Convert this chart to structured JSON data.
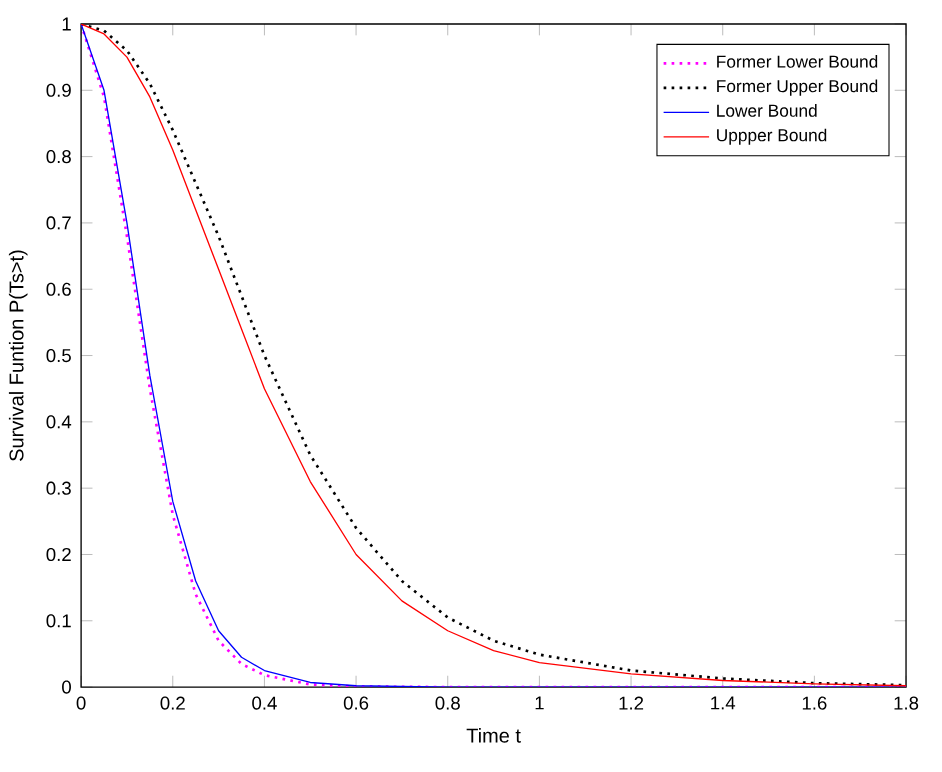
{
  "chart_data": {
    "type": "line",
    "xlabel": "Time t",
    "ylabel": "Survival Funtion P(Ts>t)",
    "xlim": [
      0,
      1.8
    ],
    "ylim": [
      0,
      1
    ],
    "xticks": [
      0,
      0.2,
      0.4,
      0.6,
      0.8,
      1,
      1.2,
      1.4,
      1.6,
      1.8
    ],
    "yticks": [
      0,
      0.1,
      0.2,
      0.3,
      0.4,
      0.5,
      0.6,
      0.7,
      0.8,
      0.9,
      1
    ],
    "legend": "top right",
    "marker": "none",
    "series": [
      {
        "name": "Former Lower Bound",
        "color": "#ff00ff",
        "line_style": "dotted",
        "x": [
          0,
          0.05,
          0.1,
          0.15,
          0.2,
          0.25,
          0.3,
          0.35,
          0.4,
          0.5,
          0.6,
          0.8,
          1.8
        ],
        "values": [
          1,
          0.89,
          0.68,
          0.45,
          0.26,
          0.14,
          0.07,
          0.035,
          0.018,
          0.004,
          0.001,
          0,
          0
        ]
      },
      {
        "name": "Former Upper Bound",
        "color": "#000000",
        "line_style": "dotted",
        "x": [
          0,
          0.05,
          0.1,
          0.15,
          0.2,
          0.25,
          0.3,
          0.35,
          0.4,
          0.5,
          0.6,
          0.7,
          0.8,
          0.9,
          1.0,
          1.2,
          1.4,
          1.6,
          1.8
        ],
        "values": [
          1,
          0.99,
          0.96,
          0.91,
          0.84,
          0.76,
          0.68,
          0.59,
          0.5,
          0.35,
          0.24,
          0.16,
          0.105,
          0.07,
          0.049,
          0.025,
          0.013,
          0.006,
          0.003
        ]
      },
      {
        "name": "Lower Bound",
        "color": "#0000ff",
        "line_style": "solid",
        "x": [
          0,
          0.05,
          0.1,
          0.15,
          0.2,
          0.25,
          0.3,
          0.35,
          0.4,
          0.5,
          0.6,
          0.8,
          1.8
        ],
        "values": [
          1,
          0.9,
          0.7,
          0.47,
          0.28,
          0.16,
          0.085,
          0.045,
          0.025,
          0.007,
          0.002,
          0,
          0
        ]
      },
      {
        "name": "Uppper Bound",
        "color": "#ff0000",
        "line_style": "solid",
        "x": [
          0,
          0.05,
          0.1,
          0.15,
          0.2,
          0.25,
          0.3,
          0.35,
          0.4,
          0.5,
          0.6,
          0.7,
          0.8,
          0.9,
          1.0,
          1.2,
          1.4,
          1.6,
          1.8
        ],
        "values": [
          1,
          0.985,
          0.95,
          0.89,
          0.81,
          0.72,
          0.63,
          0.54,
          0.45,
          0.31,
          0.2,
          0.13,
          0.085,
          0.055,
          0.037,
          0.02,
          0.01,
          0.005,
          0.002
        ]
      }
    ]
  }
}
